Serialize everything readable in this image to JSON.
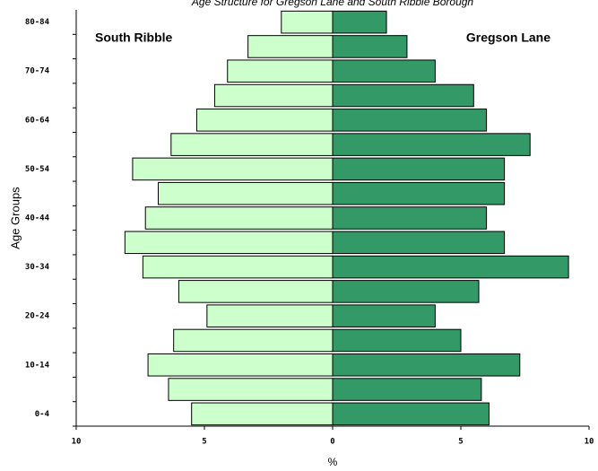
{
  "chart_data": {
    "type": "pyramid",
    "title": "Age Structure for Gregson Lane and South Ribble Borough",
    "x_label": "%",
    "y_label": "Age Groups",
    "categories": [
      "0-4",
      null,
      "10-14",
      null,
      "20-24",
      null,
      "30-34",
      null,
      "40-44",
      null,
      "50-54",
      null,
      "60-64",
      null,
      "70-74",
      null,
      "80-84"
    ],
    "series": [
      {
        "name": "South Ribble",
        "color": "#ccffcc",
        "values": [
          -5.5,
          -6.4,
          -7.2,
          -6.2,
          -4.9,
          -6.0,
          -7.4,
          -8.1,
          -7.3,
          -6.8,
          -7.8,
          -6.3,
          -5.3,
          -4.6,
          -4.1,
          -3.3,
          -2.0
        ]
      },
      {
        "name": "Gregson Lane",
        "color": "#339966",
        "values": [
          6.1,
          5.8,
          7.3,
          5.0,
          4.0,
          5.7,
          9.2,
          6.7,
          6.0,
          6.7,
          6.7,
          7.7,
          6.0,
          5.5,
          4.0,
          2.9,
          2.1
        ]
      }
    ],
    "xlim": [
      -10,
      10
    ],
    "xticks": [
      {
        "value": -10,
        "label": "10"
      },
      {
        "value": -5,
        "label": "5"
      },
      0,
      5,
      10
    ]
  }
}
